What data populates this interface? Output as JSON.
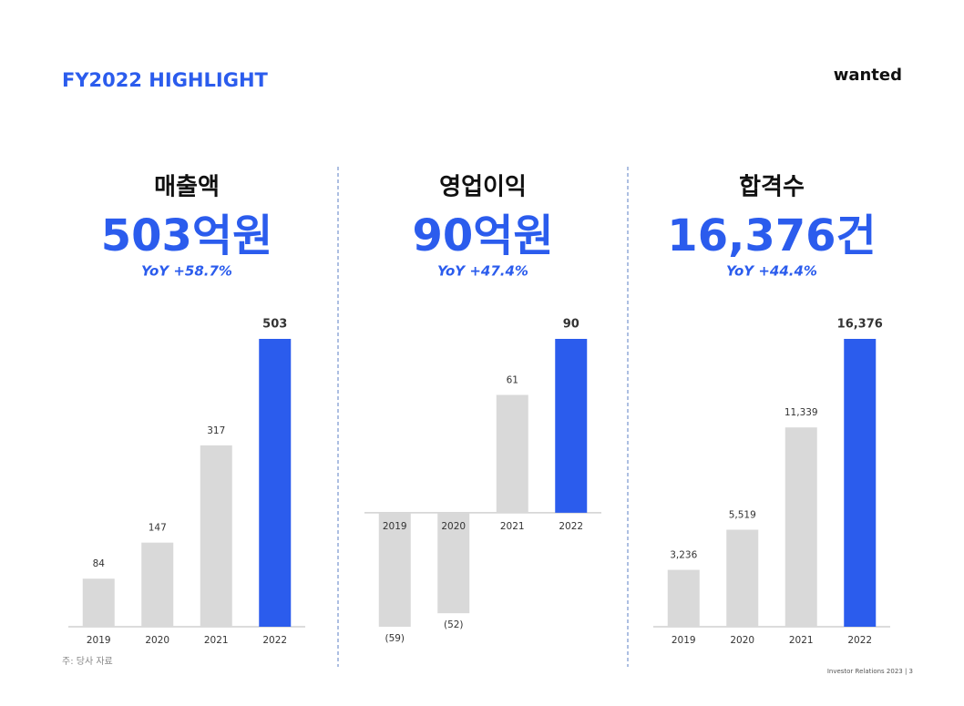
{
  "header": {
    "title": "FY2022 HIGHLIGHT",
    "logo": "wanted"
  },
  "footnote": "주: 당사 자료",
  "footer": "Investor Relations 2023 | 3",
  "chart_data": [
    {
      "type": "bar",
      "title": "매출액",
      "headline": "503억원",
      "subtitle": "YoY +58.7%",
      "categories": [
        "2019",
        "2020",
        "2021",
        "2022"
      ],
      "values": [
        84,
        147,
        317,
        503
      ],
      "colors": [
        "#d9d9d9",
        "#d9d9d9",
        "#d9d9d9",
        "#2b5ced"
      ]
    },
    {
      "type": "bar",
      "title": "영업이익",
      "headline": "90억원",
      "subtitle": "YoY +47.4%",
      "categories": [
        "2019",
        "2020",
        "2021",
        "2022"
      ],
      "values": [
        -59,
        -52,
        61,
        90
      ],
      "value_labels": [
        "(59)",
        "(52)",
        "61",
        "90"
      ],
      "colors": [
        "#d9d9d9",
        "#d9d9d9",
        "#d9d9d9",
        "#2b5ced"
      ]
    },
    {
      "type": "bar",
      "title": "합격수",
      "headline": "16,376건",
      "subtitle": "YoY +44.4%",
      "categories": [
        "2019",
        "2020",
        "2021",
        "2022"
      ],
      "values": [
        3236,
        5519,
        11339,
        16376
      ],
      "value_labels": [
        "3,236",
        "5,519",
        "11,339",
        "16,376"
      ],
      "colors": [
        "#d9d9d9",
        "#d9d9d9",
        "#d9d9d9",
        "#2b5ced"
      ]
    }
  ]
}
